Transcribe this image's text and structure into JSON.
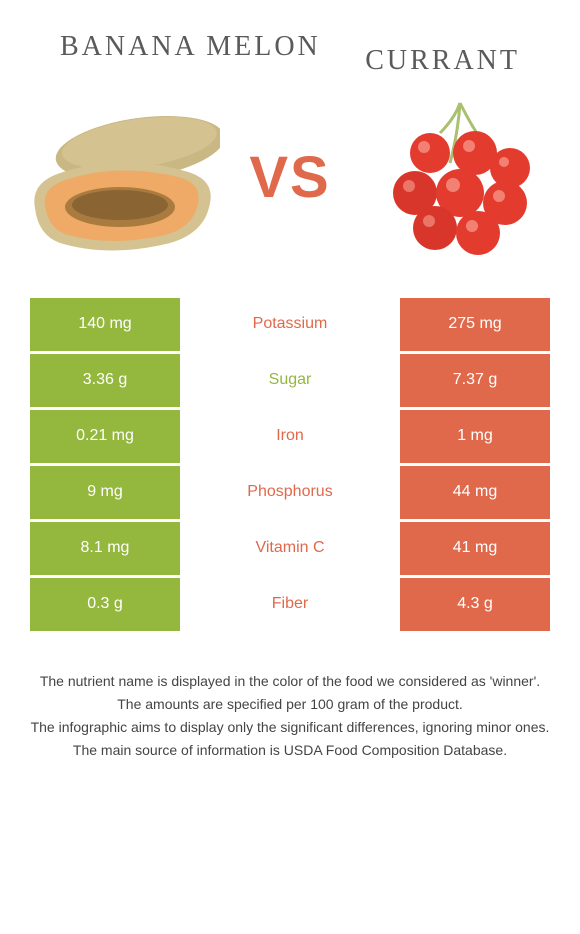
{
  "header": {
    "left_title": "BANANA MELON",
    "right_title": "CURRANT",
    "vs_text": "VS"
  },
  "colors": {
    "left_bg": "#94b73e",
    "right_bg": "#e0694c",
    "mid_text_winner_left": "#94b73e",
    "mid_text_winner_right": "#e0694c",
    "melon_outer": "#c9b884",
    "melon_inner": "#eeaa66",
    "melon_seeds": "#a97b3f",
    "currant_red": "#e43b2f",
    "currant_stem": "#a8c070"
  },
  "rows": [
    {
      "left": "140 mg",
      "label": "Potassium",
      "right": "275 mg",
      "winner": "right"
    },
    {
      "left": "3.36 g",
      "label": "Sugar",
      "right": "7.37 g",
      "winner": "left"
    },
    {
      "left": "0.21 mg",
      "label": "Iron",
      "right": "1 mg",
      "winner": "right"
    },
    {
      "left": "9 mg",
      "label": "Phosphorus",
      "right": "44 mg",
      "winner": "right"
    },
    {
      "left": "8.1 mg",
      "label": "Vitamin C",
      "right": "41 mg",
      "winner": "right"
    },
    {
      "left": "0.3 g",
      "label": "Fiber",
      "right": "4.3 g",
      "winner": "right"
    }
  ],
  "footer": {
    "line1": "The nutrient name is displayed in the color of the food we considered as 'winner'.",
    "line2": "The amounts are specified per 100 gram of the product.",
    "line3": "The infographic aims to display only the significant differences, ignoring minor ones.",
    "line4": "The main source of information is USDA Food Composition Database."
  }
}
